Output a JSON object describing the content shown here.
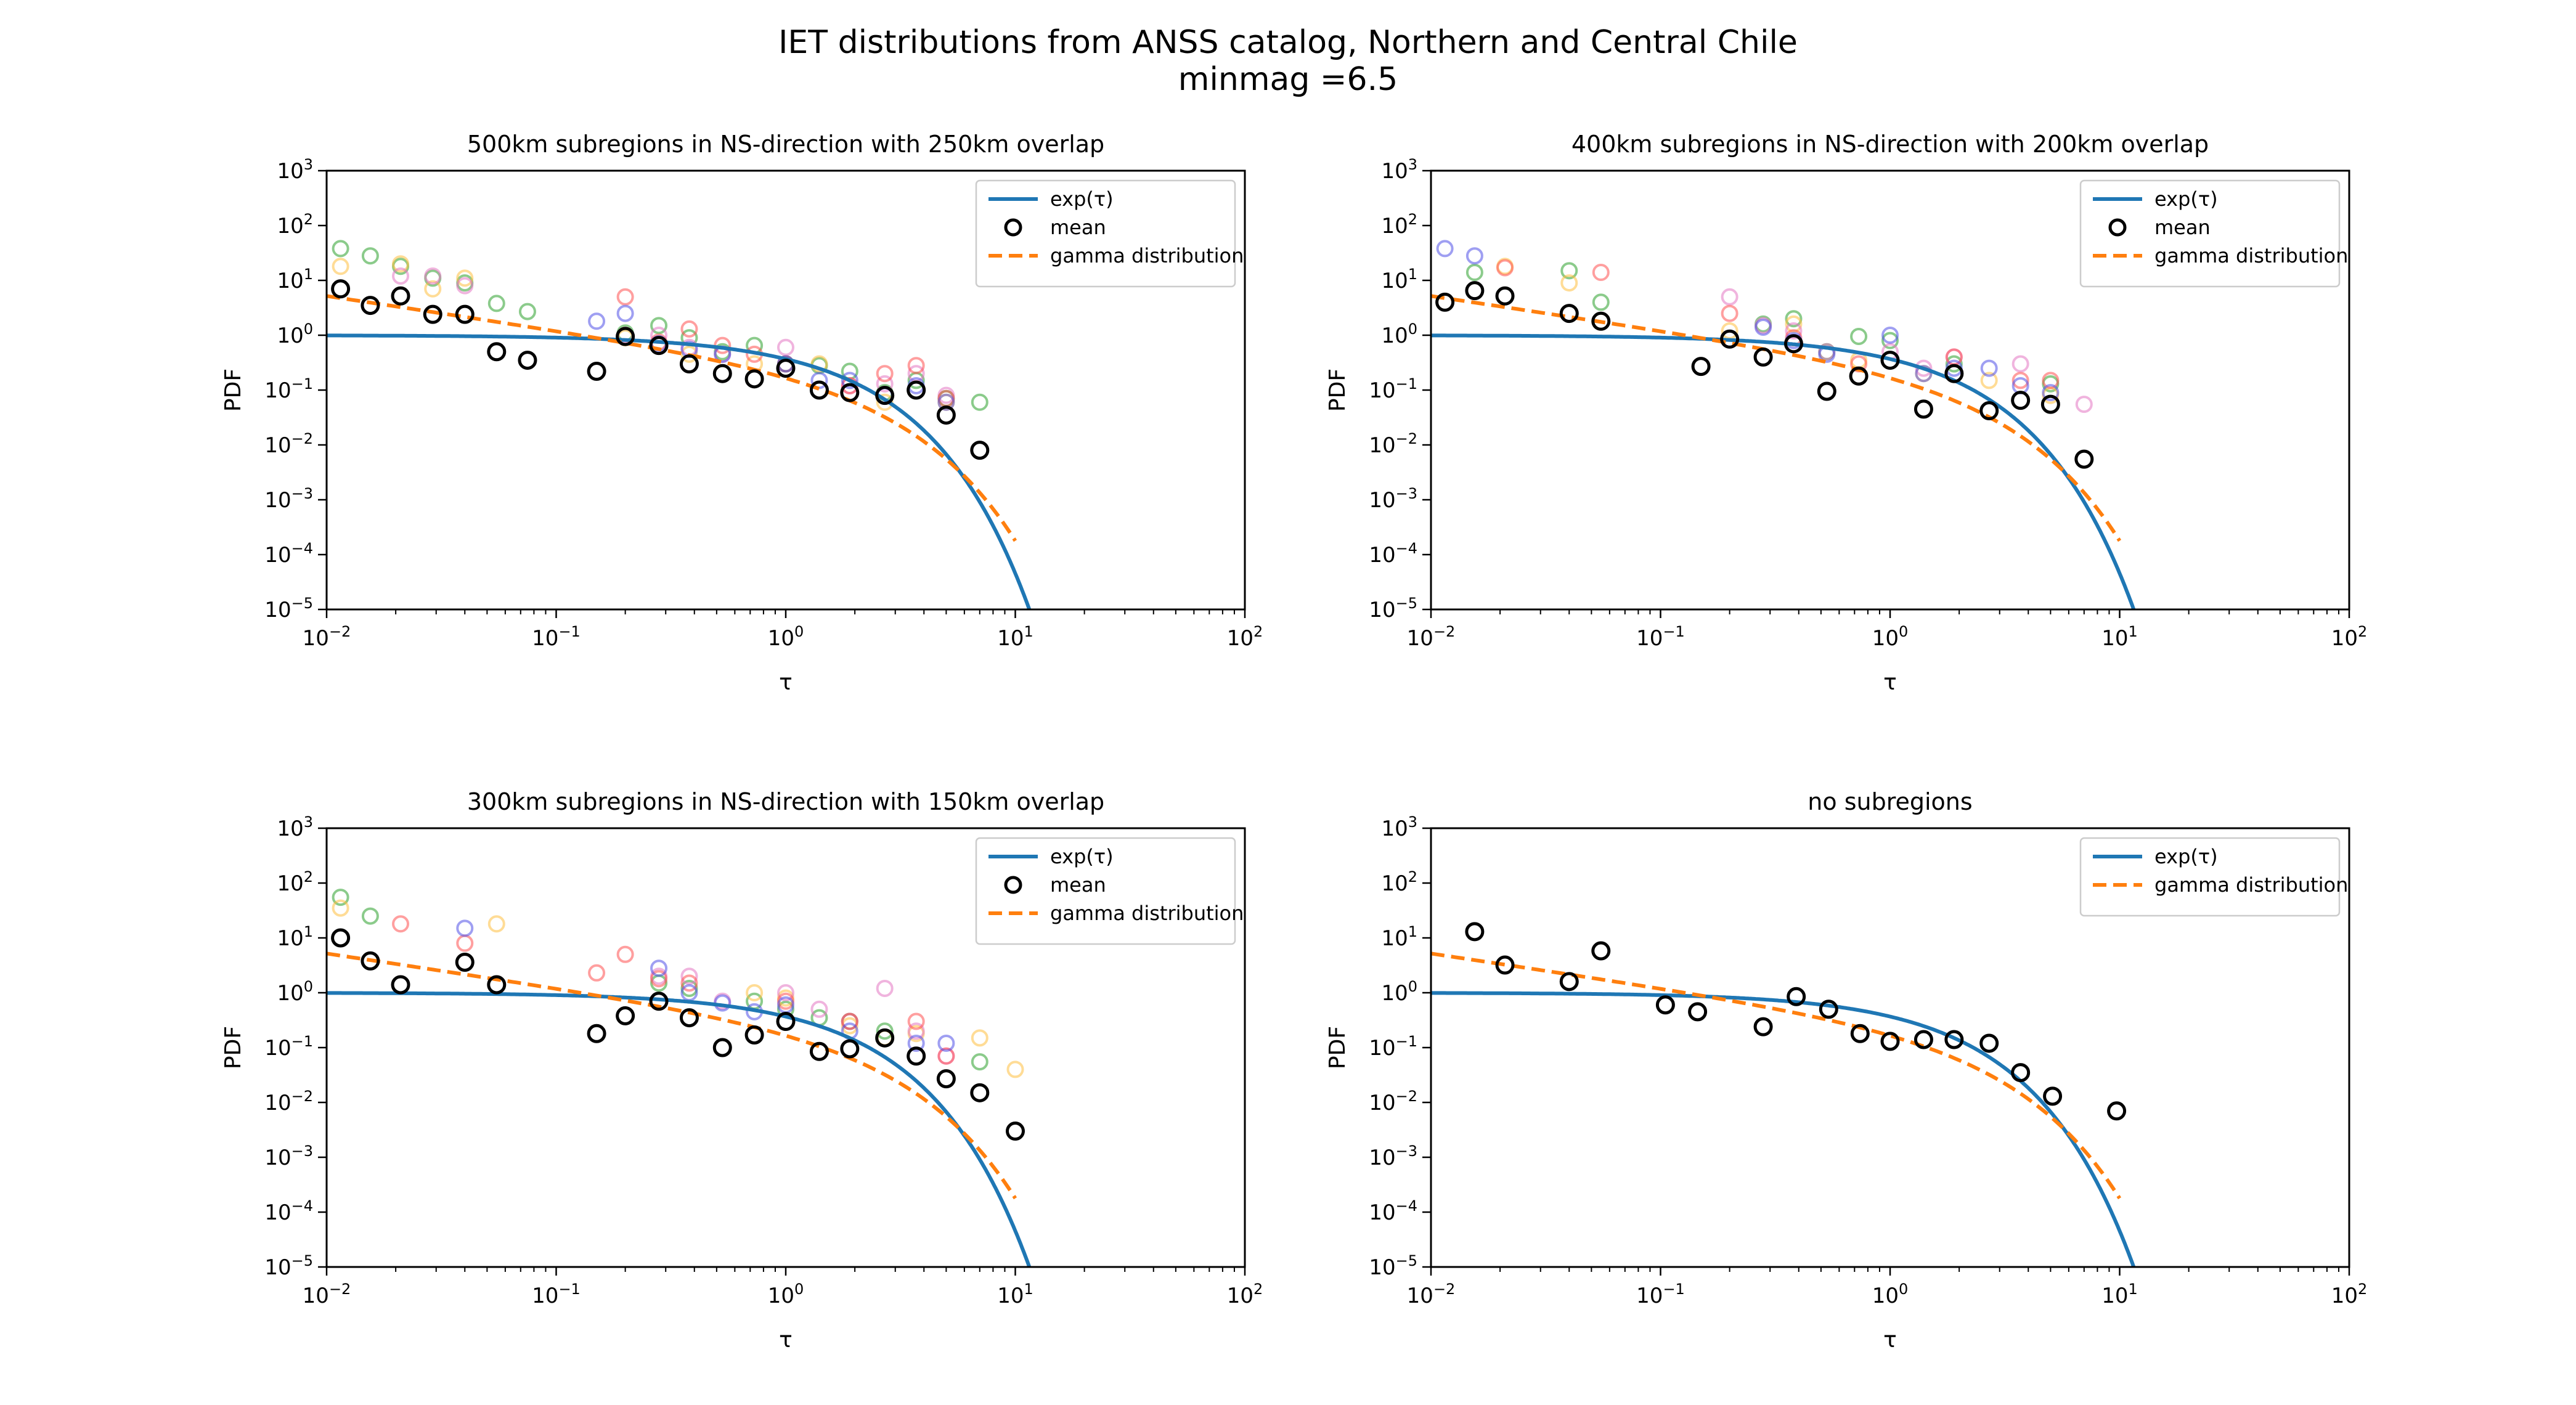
{
  "figure": {
    "title_line1": "IET distributions from ANSS catalog, Northern and Central Chile",
    "title_line2": "minmag =6.5"
  },
  "colors": {
    "exp": "#1f77b4",
    "gamma": "#ff7f0e",
    "mean": "#000000",
    "subregions": [
      "#2ca02c",
      "#ffbf40",
      "#e377c2",
      "#ff5050",
      "#5050e8"
    ]
  },
  "chart_data": [
    {
      "type": "scatter",
      "title": "500km subregions  in NS-direction with 250km overlap",
      "xlabel": "τ",
      "ylabel": "PDF",
      "xscale": "log",
      "yscale": "log",
      "xlim": [
        0.01,
        100
      ],
      "ylim": [
        1e-05,
        1000
      ],
      "xticks": [
        "10-2",
        "10-1",
        "100",
        "101",
        "102"
      ],
      "yticks": [
        "10-5",
        "10-4",
        "10-3",
        "10-2",
        "10-1",
        "100",
        "101",
        "102",
        "103"
      ],
      "legend": {
        "position": "upper right",
        "entries": [
          "exp(τ)",
          "mean",
          "gamma distribution"
        ]
      },
      "exp_curve": {
        "name": "exp(τ)",
        "x_range": [
          0.01,
          11.5
        ]
      },
      "gamma_curve": {
        "name": "gamma distribution",
        "x_range": [
          0.01,
          10
        ]
      },
      "mean": {
        "name": "mean",
        "x": [
          0.0115,
          0.0155,
          0.021,
          0.029,
          0.04,
          0.055,
          0.075,
          0.15,
          0.2,
          0.28,
          0.38,
          0.53,
          0.73,
          1.0,
          1.4,
          1.9,
          2.7,
          3.7,
          5.0,
          7.0
        ],
        "y": [
          7,
          3.5,
          5.2,
          2.4,
          2.4,
          0.5,
          0.35,
          0.22,
          0.95,
          0.65,
          0.3,
          0.2,
          0.16,
          0.25,
          0.1,
          0.09,
          0.08,
          0.1,
          0.035,
          0.008
        ]
      },
      "subregions": [
        {
          "x": [
            0.0115,
            0.0155,
            0.021,
            0.029,
            0.04,
            0.055,
            0.075,
            0.2,
            0.28,
            0.38,
            0.53,
            0.73,
            1.0,
            1.4,
            1.9,
            2.7,
            3.7,
            5.0,
            7.0
          ],
          "y": [
            38,
            28,
            18,
            11,
            9,
            3.8,
            2.7,
            1.1,
            1.5,
            0.9,
            0.5,
            0.65,
            0.3,
            0.28,
            0.22,
            0.09,
            0.15,
            0.07,
            0.06
          ]
        },
        {
          "x": [
            0.0115,
            0.021,
            0.029,
            0.04,
            0.2,
            0.38,
            0.73,
            1.4,
            2.7,
            5.0
          ],
          "y": [
            18,
            20,
            7,
            11,
            0.9,
            0.45,
            0.3,
            0.3,
            0.06,
            0.06
          ]
        },
        {
          "x": [
            0.021,
            0.029,
            0.04,
            0.2,
            0.28,
            0.38,
            0.53,
            1.0,
            1.9,
            2.7,
            3.7,
            5.0
          ],
          "y": [
            12,
            12,
            8,
            1.0,
            1.0,
            0.6,
            0.45,
            0.6,
            0.12,
            0.13,
            0.2,
            0.08
          ]
        },
        {
          "x": [
            0.2,
            0.28,
            0.38,
            0.53,
            0.73,
            1.0,
            1.9,
            2.7,
            3.7,
            5.0
          ],
          "y": [
            5.0,
            0.75,
            1.3,
            0.65,
            0.45,
            0.3,
            0.12,
            0.2,
            0.28,
            0.07
          ]
        },
        {
          "x": [
            0.15,
            0.2,
            0.28,
            0.38,
            0.53,
            1.0,
            1.4,
            1.9,
            2.7,
            3.7,
            5.0
          ],
          "y": [
            1.8,
            2.5,
            0.7,
            0.55,
            0.45,
            0.3,
            0.15,
            0.15,
            0.08,
            0.12,
            0.06
          ]
        }
      ]
    },
    {
      "type": "scatter",
      "title": "400km subregions  in NS-direction with 200km overlap",
      "xlabel": "τ",
      "ylabel": "PDF",
      "xscale": "log",
      "yscale": "log",
      "xlim": [
        0.01,
        100
      ],
      "ylim": [
        1e-05,
        1000
      ],
      "xticks": [
        "10-2",
        "10-1",
        "100",
        "101",
        "102"
      ],
      "yticks": [
        "10-5",
        "10-4",
        "10-3",
        "10-2",
        "10-1",
        "100",
        "101",
        "102",
        "103"
      ],
      "legend": {
        "position": "upper right",
        "entries": [
          "exp(τ)",
          "mean",
          "gamma distribution"
        ]
      },
      "exp_curve": {
        "name": "exp(τ)",
        "x_range": [
          0.01,
          11.5
        ]
      },
      "gamma_curve": {
        "name": "gamma distribution",
        "x_range": [
          0.01,
          10
        ]
      },
      "mean": {
        "name": "mean",
        "x": [
          0.0115,
          0.0155,
          0.021,
          0.04,
          0.055,
          0.15,
          0.2,
          0.28,
          0.38,
          0.53,
          0.73,
          1.0,
          1.4,
          1.9,
          2.7,
          3.7,
          5.0,
          7.0
        ],
        "y": [
          4,
          6.5,
          5.2,
          2.5,
          1.8,
          0.27,
          0.85,
          0.4,
          0.7,
          0.095,
          0.18,
          0.35,
          0.045,
          0.2,
          0.042,
          0.065,
          0.055,
          0.0055
        ]
      },
      "subregions": [
        {
          "x": [
            0.0155,
            0.04,
            0.055,
            0.28,
            0.38,
            0.53,
            0.73,
            1.0,
            1.9,
            5.0
          ],
          "y": [
            14,
            15,
            4,
            1.6,
            2,
            0.5,
            0.95,
            0.8,
            0.3,
            0.13
          ]
        },
        {
          "x": [
            0.021,
            0.04,
            0.2,
            0.38,
            0.73,
            1.4,
            2.7,
            5.0
          ],
          "y": [
            18,
            9,
            1.2,
            1.6,
            0.35,
            0.2,
            0.15,
            0.08
          ]
        },
        {
          "x": [
            0.2,
            0.28,
            0.38,
            0.53,
            1.0,
            1.4,
            1.9,
            3.7,
            7.0
          ],
          "y": [
            5,
            1.5,
            1.2,
            0.5,
            0.5,
            0.25,
            0.4,
            0.3,
            0.055
          ]
        },
        {
          "x": [
            0.021,
            0.055,
            0.2,
            0.38,
            0.73,
            1.9,
            3.7,
            5.0
          ],
          "y": [
            17,
            14,
            2.5,
            0.9,
            0.3,
            0.4,
            0.15,
            0.15
          ]
        },
        {
          "x": [
            0.0115,
            0.0155,
            0.28,
            0.38,
            0.53,
            1.0,
            1.4,
            1.9,
            2.7,
            3.7,
            5.0
          ],
          "y": [
            38,
            28,
            1.4,
            0.8,
            0.45,
            1.0,
            0.2,
            0.25,
            0.25,
            0.12,
            0.09
          ]
        }
      ]
    },
    {
      "type": "scatter",
      "title": "300km subregions  in NS-direction with 150km overlap",
      "xlabel": "τ",
      "ylabel": "PDF",
      "xscale": "log",
      "yscale": "log",
      "xlim": [
        0.01,
        100
      ],
      "ylim": [
        1e-05,
        1000
      ],
      "xticks": [
        "10-2",
        "10-1",
        "100",
        "101",
        "102"
      ],
      "yticks": [
        "10-5",
        "10-4",
        "10-3",
        "10-2",
        "10-1",
        "100",
        "101",
        "102",
        "103"
      ],
      "legend": {
        "position": "upper right",
        "entries": [
          "exp(τ)",
          "mean",
          "gamma distribution"
        ]
      },
      "exp_curve": {
        "name": "exp(τ)",
        "x_range": [
          0.01,
          11.5
        ]
      },
      "gamma_curve": {
        "name": "gamma distribution",
        "x_range": [
          0.01,
          10
        ]
      },
      "mean": {
        "name": "mean",
        "x": [
          0.0115,
          0.0155,
          0.021,
          0.04,
          0.055,
          0.15,
          0.2,
          0.28,
          0.38,
          0.53,
          0.73,
          1.0,
          1.4,
          1.9,
          2.7,
          3.7,
          5.0,
          7.0,
          10.0
        ],
        "y": [
          10,
          3.8,
          1.4,
          3.6,
          1.4,
          0.18,
          0.38,
          0.7,
          0.35,
          0.1,
          0.17,
          0.3,
          0.085,
          0.095,
          0.15,
          0.07,
          0.027,
          0.015,
          0.003
        ]
      },
      "subregions": [
        {
          "x": [
            0.0115,
            0.0155,
            0.28,
            0.38,
            0.73,
            1.0,
            1.4,
            1.9,
            2.7,
            7.0
          ],
          "y": [
            55,
            25,
            1.5,
            1.2,
            0.7,
            0.5,
            0.35,
            0.3,
            0.2,
            0.055
          ]
        },
        {
          "x": [
            0.0115,
            0.055,
            0.73,
            1.0,
            1.9,
            2.7,
            3.7,
            7.0,
            10.0
          ],
          "y": [
            35,
            18,
            1.0,
            0.8,
            0.25,
            0.15,
            0.18,
            0.15,
            0.04
          ]
        },
        {
          "x": [
            0.28,
            0.38,
            0.53,
            1.0,
            1.4,
            1.9,
            2.7,
            3.7,
            5.0
          ],
          "y": [
            2,
            2,
            0.7,
            1.0,
            0.5,
            0.3,
            1.2,
            0.2,
            0.07
          ]
        },
        {
          "x": [
            0.021,
            0.04,
            0.15,
            0.2,
            0.28,
            0.38,
            1.0,
            1.9,
            3.7,
            5.0
          ],
          "y": [
            18,
            8,
            2.3,
            5,
            1.8,
            1.5,
            0.7,
            0.3,
            0.3,
            0.07
          ]
        },
        {
          "x": [
            0.04,
            0.28,
            0.38,
            0.53,
            0.73,
            1.0,
            1.9,
            3.7,
            5.0
          ],
          "y": [
            15,
            2.8,
            1.0,
            0.65,
            0.45,
            0.6,
            0.2,
            0.12,
            0.12
          ]
        }
      ]
    },
    {
      "type": "scatter",
      "title": "no subregions",
      "xlabel": "τ",
      "ylabel": "PDF",
      "xscale": "log",
      "yscale": "log",
      "xlim": [
        0.01,
        100
      ],
      "ylim": [
        1e-05,
        1000
      ],
      "xticks": [
        "10-2",
        "10-1",
        "100",
        "101",
        "102"
      ],
      "yticks": [
        "10-5",
        "10-4",
        "10-3",
        "10-2",
        "10-1",
        "100",
        "101",
        "102",
        "103"
      ],
      "legend": {
        "position": "upper right",
        "entries": [
          "exp(τ)",
          "gamma distribution"
        ]
      },
      "exp_curve": {
        "name": "exp(τ)",
        "x_range": [
          0.01,
          11.5
        ]
      },
      "gamma_curve": {
        "name": "gamma distribution",
        "x_range": [
          0.01,
          10
        ]
      },
      "mean": {
        "x": [
          0.0155,
          0.021,
          0.04,
          0.055,
          0.105,
          0.145,
          0.28,
          0.39,
          0.54,
          0.74,
          1.0,
          1.4,
          1.9,
          2.7,
          3.7,
          5.1,
          9.7
        ],
        "y": [
          13,
          3.2,
          1.6,
          5.8,
          0.6,
          0.45,
          0.24,
          0.85,
          0.5,
          0.18,
          0.13,
          0.14,
          0.14,
          0.12,
          0.035,
          0.013,
          0.007
        ]
      },
      "subregions": []
    }
  ]
}
